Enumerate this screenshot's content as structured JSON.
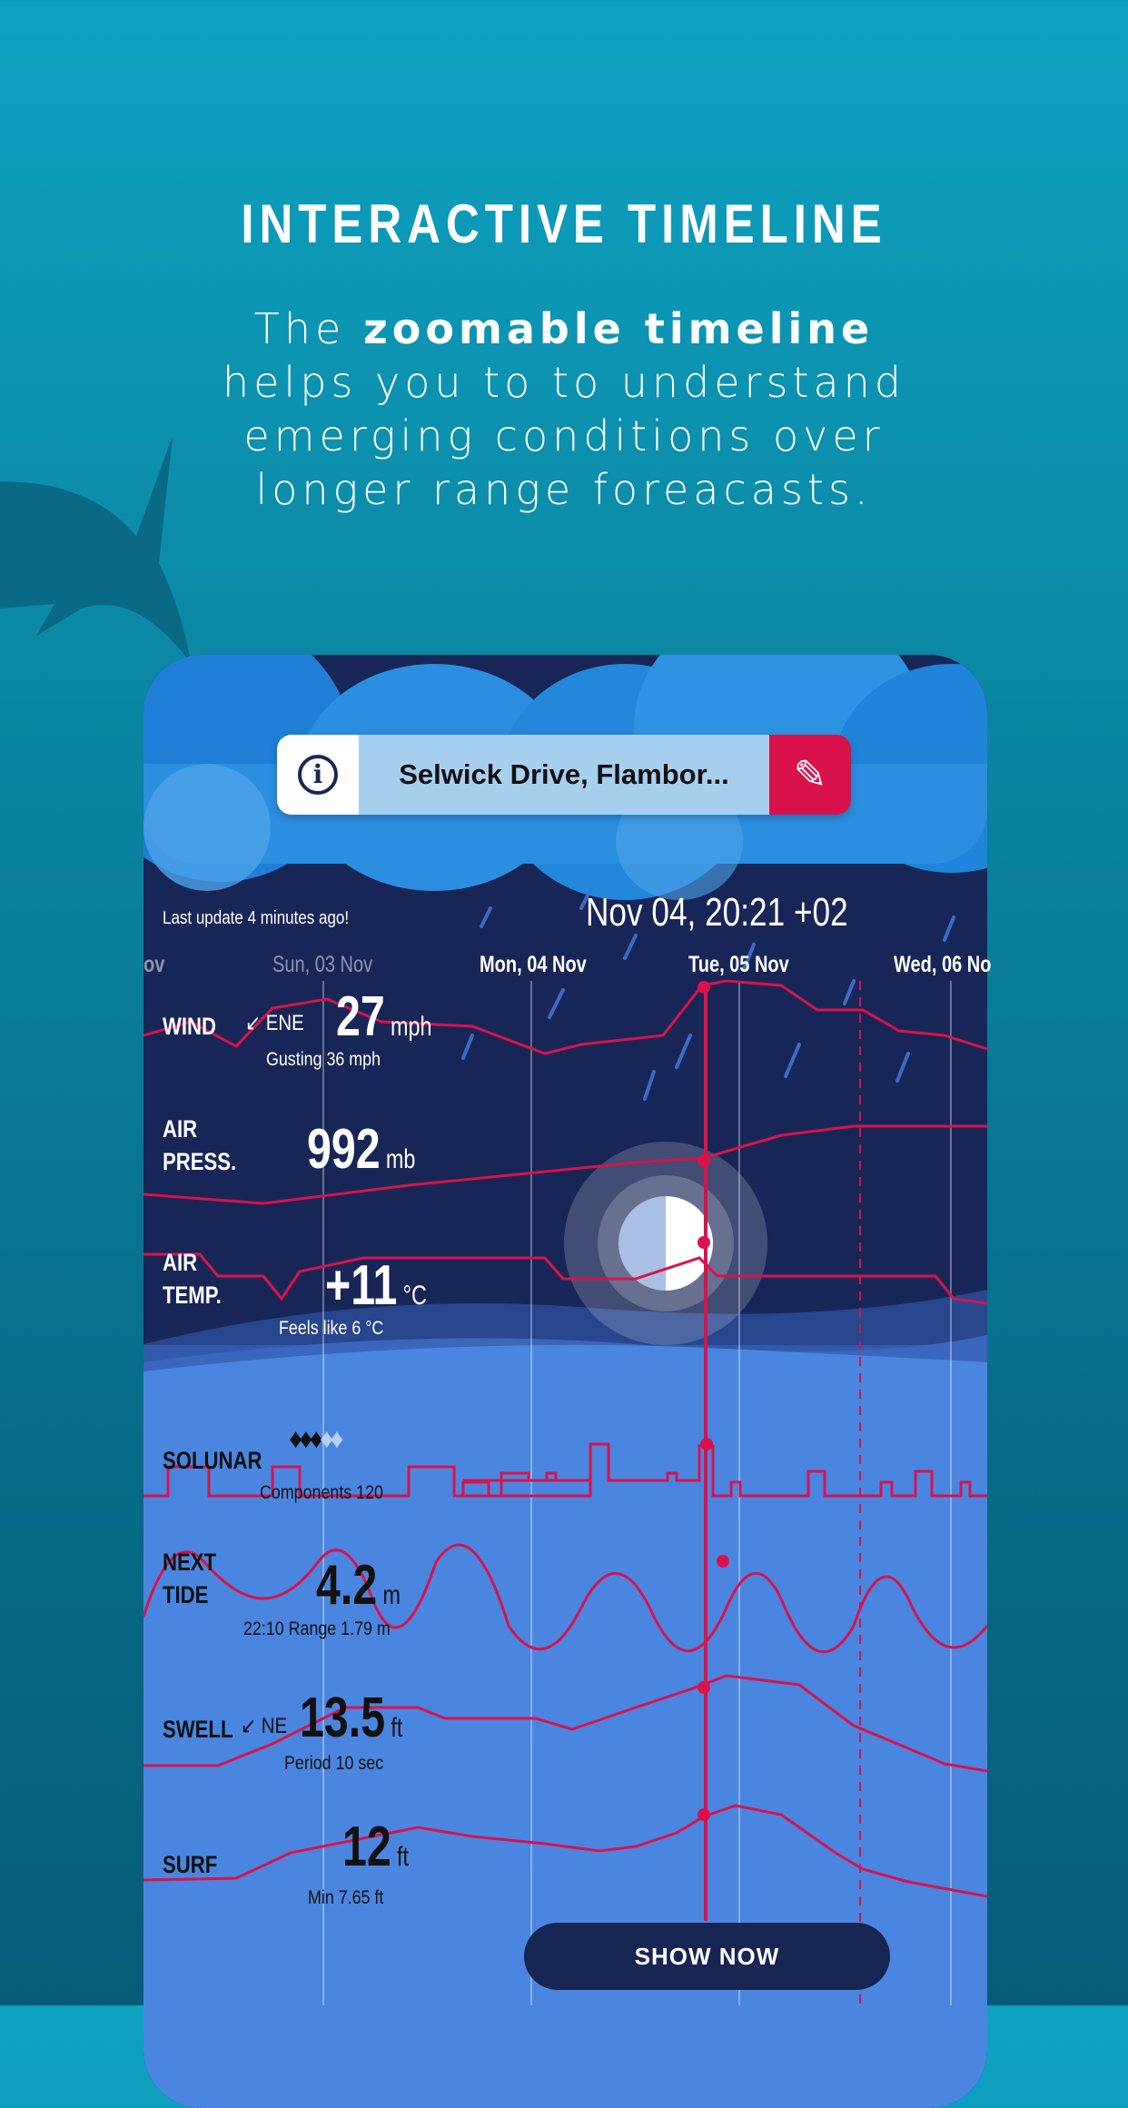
{
  "promo": {
    "title": "INTERACTIVE TIMELINE",
    "lines": [
      "The ",
      "zoomable timeline",
      "helps you to to understand",
      "emerging conditions over",
      "longer range foreacasts."
    ]
  },
  "search": {
    "location": "Selwick Drive, Flambor...",
    "info_icon": "info-icon",
    "edit_icon": "pencil-icon"
  },
  "header": {
    "last_update": "Last update 4 minutes ago!",
    "datetime": "Nov 04, 20:21 +02"
  },
  "days": [
    "ov",
    "Sun, 03 Nov",
    "Mon, 04 Nov",
    "Tue, 05 Nov",
    "Wed, 06 No"
  ],
  "rows": {
    "wind": {
      "label": "WIND",
      "dir": "ENE",
      "value": "27",
      "unit": "mph",
      "sub": "Gusting 36 mph"
    },
    "pressure": {
      "label1": "AIR",
      "label2": "PRESS.",
      "value": "992",
      "unit": "mb"
    },
    "temp": {
      "label1": "AIR",
      "label2": "TEMP.",
      "value": "+11",
      "unit": "°C",
      "sub": "Feels like 6 °C"
    },
    "solunar": {
      "label": "SOLUNAR",
      "rating": 3,
      "max": 5,
      "sub": "Components 120"
    },
    "tide": {
      "label1": "NEXT",
      "label2": "TIDE",
      "value": "4.2",
      "unit": "m",
      "sub": "22:10 Range 1.79 m"
    },
    "swell": {
      "label": "SWELL",
      "dir": "NE",
      "value": "13.5",
      "unit": "ft",
      "sub": "Period 10 sec"
    },
    "surf": {
      "label": "SURF",
      "value": "12",
      "unit": "ft",
      "sub": "Min 7.65 ft"
    }
  },
  "cta": {
    "label": "SHOW NOW"
  },
  "colors": {
    "accent": "#d9124b",
    "night": "#182657",
    "sea": "#4a86e0",
    "button": "#172553"
  }
}
